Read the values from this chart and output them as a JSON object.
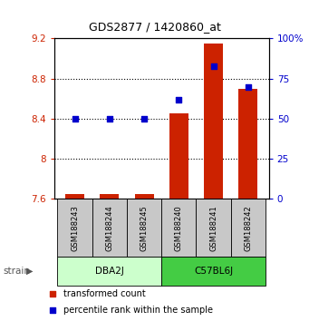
{
  "title": "GDS2877 / 1420860_at",
  "samples": [
    "GSM188243",
    "GSM188244",
    "GSM188245",
    "GSM188240",
    "GSM188241",
    "GSM188242"
  ],
  "red_bars": [
    7.65,
    7.65,
    7.65,
    8.45,
    9.15,
    8.7
  ],
  "blue_dots": [
    50,
    50,
    50,
    62,
    83,
    70
  ],
  "ylim_left": [
    7.6,
    9.2
  ],
  "ylim_right": [
    0,
    100
  ],
  "yticks_left": [
    7.6,
    8.0,
    8.4,
    8.8,
    9.2
  ],
  "ytick_labels_left": [
    "7.6",
    "8",
    "8.4",
    "8.8",
    "9.2"
  ],
  "yticks_right": [
    0,
    25,
    50,
    75,
    100
  ],
  "ytick_labels_right": [
    "0",
    "25",
    "50",
    "75",
    "100%"
  ],
  "left_color": "#cc2200",
  "right_color": "#0000cc",
  "bar_color": "#cc2200",
  "dot_color": "#0000cc",
  "bg_sample_box": "#c8c8c8",
  "group_dba_color": "#ccffcc",
  "group_c57_color": "#44cc44",
  "gridline_levels": [
    8.0,
    8.4,
    8.8
  ],
  "dba_label": "DBA2J",
  "c57_label": "C57BL6J",
  "strain_label": "strain",
  "legend_red": "transformed count",
  "legend_blue": "percentile rank within the sample"
}
